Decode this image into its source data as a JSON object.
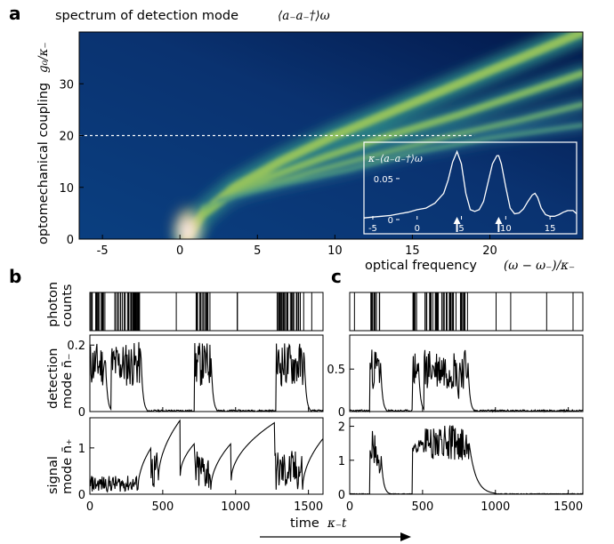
{
  "chart_data": [
    {
      "panel": "a",
      "type": "heatmap",
      "title": "spectrum of detection mode",
      "title_math": "⟨a₋a₋†⟩ω",
      "xlabel": "optical frequency",
      "xlabel_math": "(ω − ω₋)/κ₋",
      "ylabel": "optomechanical coupling",
      "ylabel_math": "g₀/κ₋",
      "xlim": [
        -6.5,
        26
      ],
      "ylim": [
        0,
        40
      ],
      "xticks": [
        -5,
        0,
        5,
        10,
        15,
        20
      ],
      "yticks": [
        0,
        10,
        20,
        30
      ],
      "colormap": [
        "#00205a",
        "#0d4f88",
        "#2f8c86",
        "#9fc95a",
        "#f4ee9c",
        "#ffffff"
      ],
      "reference_line": {
        "y": 20,
        "style": "dashed",
        "color": "#ffffff"
      },
      "branches_g_vs_omega": [
        {
          "name": "branch 1",
          "points": [
            [
              0.4,
              0
            ],
            [
              1.5,
              5
            ],
            [
              3.5,
              10
            ],
            [
              6.5,
              15
            ],
            [
              10,
              20
            ],
            [
              14,
              25
            ],
            [
              18,
              30
            ],
            [
              22,
              35
            ],
            [
              26,
              40
            ]
          ]
        },
        {
          "name": "branch 2",
          "points": [
            [
              0.8,
              3
            ],
            [
              3,
              8
            ],
            [
              5.8,
              12
            ],
            [
              9.5,
              16
            ],
            [
              13.5,
              20
            ],
            [
              18,
              24
            ],
            [
              22,
              28
            ],
            [
              26,
              32
            ]
          ]
        },
        {
          "name": "branch 3",
          "points": [
            [
              1.5,
              6
            ],
            [
              4.5,
              9.5
            ],
            [
              8.5,
              13
            ],
            [
              13,
              16.5
            ],
            [
              17.5,
              20
            ],
            [
              22,
              23
            ],
            [
              26,
              26
            ]
          ]
        },
        {
          "name": "branch 4",
          "points": [
            [
              2.5,
              7.5
            ],
            [
              6.5,
              10.5
            ],
            [
              11,
              13.5
            ],
            [
              15.5,
              17
            ],
            [
              20,
              19.5
            ],
            [
              26,
              22
            ]
          ]
        }
      ],
      "inset": {
        "type": "line",
        "ylabel": "κ₋⟨a₋a₋†⟩ω",
        "xlim": [
          -6,
          18
        ],
        "ylim": [
          0,
          0.09
        ],
        "xticks": [
          -5,
          0,
          5,
          10,
          15
        ],
        "yticks": [
          0,
          0.05
        ],
        "arrows_at": [
          4.5,
          9.2
        ],
        "peaks": [
          [
            4.5,
            0.083
          ],
          [
            9.2,
            0.078
          ],
          [
            13.3,
            0.032
          ],
          [
            17.6,
            0.011
          ]
        ],
        "x": [
          -6,
          -5,
          -4,
          -3,
          -2,
          -1,
          0,
          1,
          2,
          3,
          3.5,
          4,
          4.5,
          5,
          5.5,
          6,
          6.5,
          7,
          7.5,
          8,
          8.5,
          9,
          9.2,
          9.5,
          10,
          10.5,
          11,
          11.5,
          12,
          12.5,
          13,
          13.3,
          13.6,
          14,
          14.5,
          15,
          15.5,
          16,
          16.5,
          17,
          17.6,
          18
        ],
        "y": [
          0.002,
          0.003,
          0.004,
          0.005,
          0.007,
          0.009,
          0.012,
          0.014,
          0.02,
          0.032,
          0.048,
          0.07,
          0.083,
          0.068,
          0.032,
          0.012,
          0.01,
          0.012,
          0.022,
          0.045,
          0.068,
          0.078,
          0.078,
          0.068,
          0.04,
          0.014,
          0.007,
          0.008,
          0.013,
          0.022,
          0.03,
          0.032,
          0.027,
          0.014,
          0.006,
          0.004,
          0.004,
          0.006,
          0.009,
          0.011,
          0.011,
          0.007
        ]
      }
    },
    {
      "panel": "b",
      "type": "line",
      "xlabel": "time",
      "xlabel_math": "κ₋t",
      "xlim": [
        0,
        1600
      ],
      "xticks": [
        0,
        500,
        1000,
        1500
      ],
      "subplots": [
        {
          "name": "photon counts",
          "ylabel": "photon counts",
          "type": "events",
          "event_groups": [
            [
              0,
              105
            ],
            [
              145,
              350
            ],
            [
              590,
              595
            ],
            [
              720,
              830
            ],
            [
              1010,
              1020
            ],
            [
              1280,
              1470
            ],
            [
              1520,
              1525
            ]
          ]
        },
        {
          "name": "detection mode",
          "ylabel": "detection mode",
          "ylabel_math": "n̄₋",
          "ylim": [
            0,
            0.23
          ],
          "yticks": [
            0,
            0.2
          ]
        },
        {
          "name": "signal mode",
          "ylabel": "signal mode",
          "ylabel_math": "n̄₊",
          "ylim": [
            0,
            1.65
          ],
          "yticks": [
            0,
            1
          ]
        }
      ]
    },
    {
      "panel": "c",
      "type": "line",
      "xlim": [
        0,
        1600
      ],
      "xticks": [
        0,
        500,
        1000,
        1500
      ],
      "subplots": [
        {
          "name": "photon counts",
          "type": "events",
          "event_groups": [
            [
              30,
              33
            ],
            [
              140,
              210
            ],
            [
              430,
              470
            ],
            [
              510,
              730
            ],
            [
              750,
              810
            ],
            [
              1000,
              1005
            ],
            [
              1100,
              1105
            ],
            [
              1350,
              1355
            ],
            [
              1530,
              1535
            ]
          ]
        },
        {
          "name": "detection mode",
          "ylim": [
            0,
            0.9
          ],
          "yticks": [
            0,
            0.5
          ]
        },
        {
          "name": "signal mode",
          "ylim": [
            0,
            2.25
          ],
          "yticks": [
            0,
            1,
            2
          ]
        }
      ]
    }
  ],
  "labels": {
    "panel_a": "a",
    "panel_b": "b",
    "panel_c": "c",
    "title": "spectrum of detection mode",
    "title_math": "⟨a₋a₋†⟩ω",
    "ylabel_a": "optomechanical coupling",
    "ylabel_a_math": "g₀/κ₋",
    "xlabel_a": "optical frequency",
    "xlabel_a_math": "(ω − ω₋)/κ₋",
    "inset_ylabel": "κ₋⟨a₋a₋†⟩ω",
    "photon_counts_1": "photon",
    "photon_counts_2": "counts",
    "detection_1": "detection",
    "detection_2": "mode n̄₋",
    "signal_1": "signal",
    "signal_2": "mode n̄₊",
    "time": "time",
    "time_math": "κ₋t"
  },
  "colors": {
    "line": "#000000",
    "inset_line": "#ffffff",
    "dashed": "#ffffff"
  }
}
